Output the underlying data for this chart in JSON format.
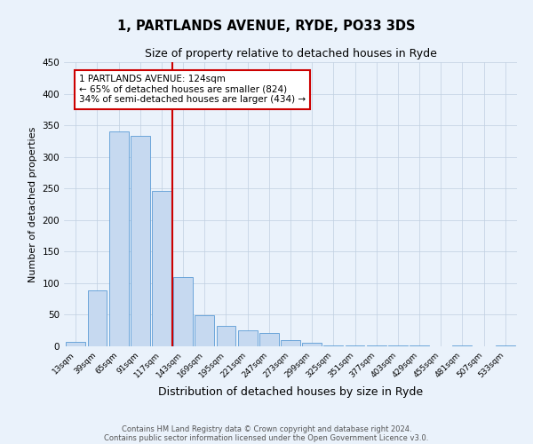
{
  "title": "1, PARTLANDS AVENUE, RYDE, PO33 3DS",
  "subtitle": "Size of property relative to detached houses in Ryde",
  "xlabel": "Distribution of detached houses by size in Ryde",
  "ylabel": "Number of detached properties",
  "bar_labels": [
    "13sqm",
    "39sqm",
    "65sqm",
    "91sqm",
    "117sqm",
    "143sqm",
    "169sqm",
    "195sqm",
    "221sqm",
    "247sqm",
    "273sqm",
    "299sqm",
    "325sqm",
    "351sqm",
    "377sqm",
    "403sqm",
    "429sqm",
    "455sqm",
    "481sqm",
    "507sqm",
    "533sqm"
  ],
  "bar_values": [
    7,
    88,
    340,
    333,
    246,
    110,
    49,
    32,
    26,
    21,
    10,
    5,
    1,
    1,
    1,
    1,
    1,
    0,
    1,
    0,
    1
  ],
  "bar_color": "#c6d9f0",
  "bar_edge_color": "#5b9bd5",
  "vline_x": 4.5,
  "vline_color": "#cc0000",
  "annotation_title": "1 PARTLANDS AVENUE: 124sqm",
  "annotation_line1": "← 65% of detached houses are smaller (824)",
  "annotation_line2": "34% of semi-detached houses are larger (434) →",
  "annotation_box_color": "#cc0000",
  "ylim": [
    0,
    450
  ],
  "yticks": [
    0,
    50,
    100,
    150,
    200,
    250,
    300,
    350,
    400,
    450
  ],
  "footer_line1": "Contains HM Land Registry data © Crown copyright and database right 2024.",
  "footer_line2": "Contains public sector information licensed under the Open Government Licence v3.0.",
  "fig_bg_color": "#eaf2fb",
  "plot_bg_color": "#eaf2fb",
  "grid_color": "#c0cfe0"
}
